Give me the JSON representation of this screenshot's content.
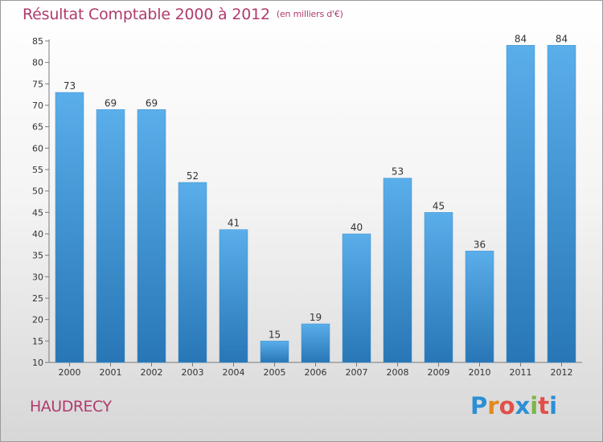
{
  "header": {
    "title": "Résultat Comptable 2000 à 2012",
    "subtitle": "(en milliers d'€)"
  },
  "footer": {
    "commune": "HAUDRECY",
    "brand_letters": [
      "P",
      "r",
      "o",
      "x",
      "i",
      "t",
      "i"
    ],
    "brand_colors": [
      "#2c8fd6",
      "#e08a1e",
      "#e0504a",
      "#2c8fd6",
      "#7ab648",
      "#e0504a",
      "#2c8fd6"
    ]
  },
  "colors": {
    "bar_top": "#5aaeea",
    "bar_bottom": "#2876b6",
    "text": "#b03a6d",
    "axis_text": "#333333"
  },
  "chart_data": {
    "type": "bar",
    "title": "Résultat Comptable 2000 à 2012",
    "subtitle": "(en milliers d'€)",
    "categories": [
      "2000",
      "2001",
      "2002",
      "2003",
      "2004",
      "2005",
      "2006",
      "2007",
      "2008",
      "2009",
      "2010",
      "2011",
      "2012"
    ],
    "values": [
      73,
      69,
      69,
      52,
      41,
      15,
      19,
      40,
      53,
      45,
      36,
      84,
      84
    ],
    "ylim": [
      10,
      85
    ],
    "yticks": [
      10,
      15,
      20,
      25,
      30,
      35,
      40,
      45,
      50,
      55,
      60,
      65,
      70,
      75,
      80,
      85
    ],
    "grid": false,
    "data_labels": true
  }
}
